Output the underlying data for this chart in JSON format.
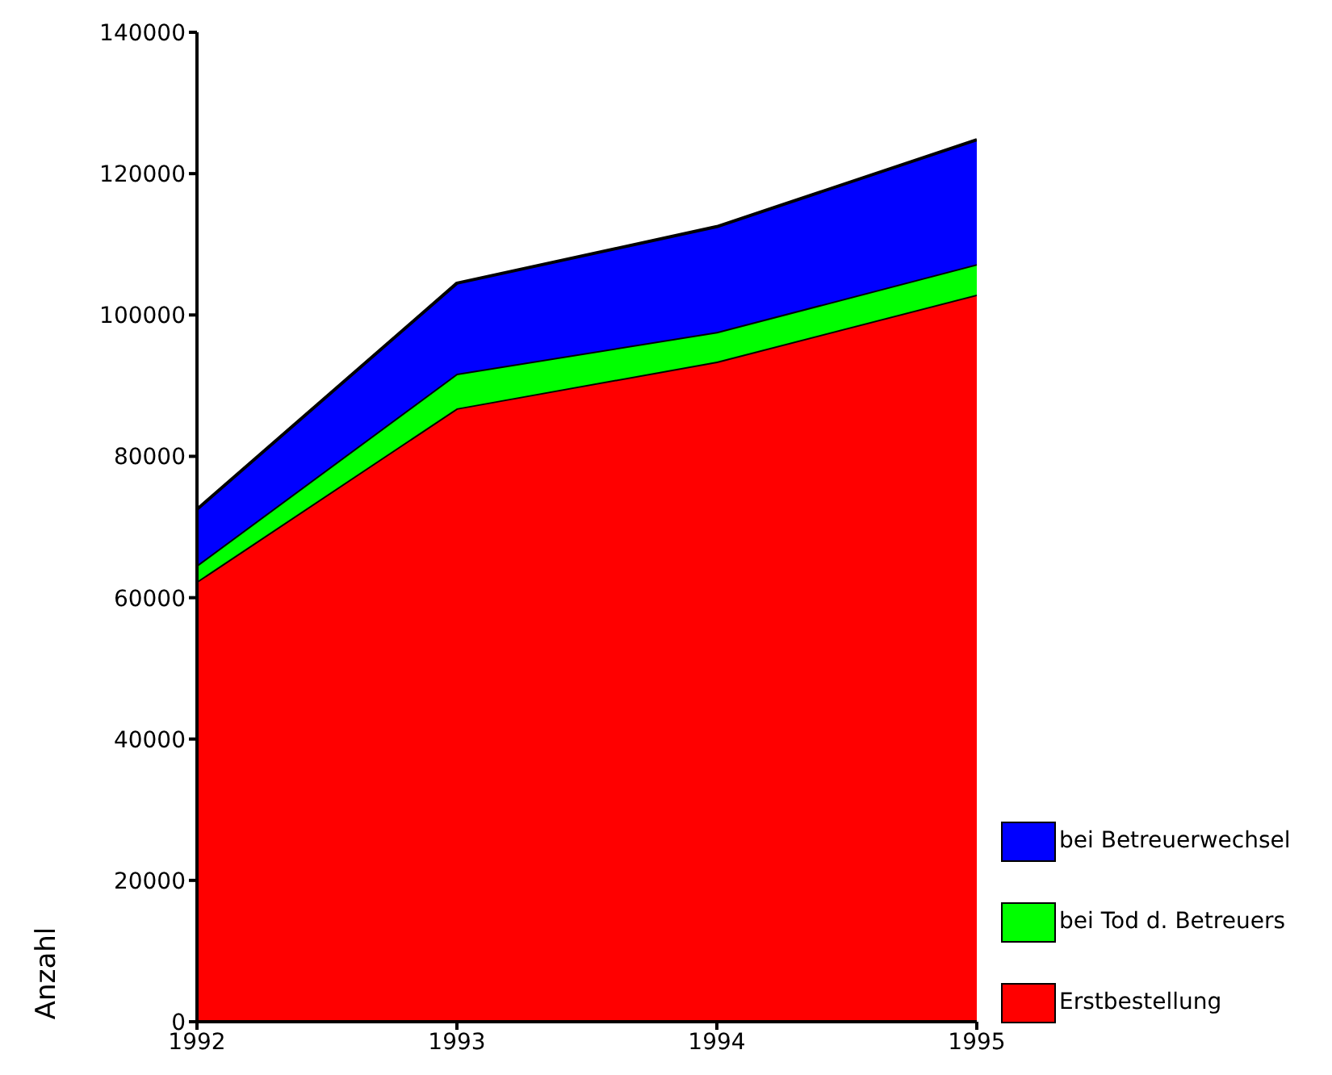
{
  "chart_data": {
    "type": "area",
    "stacked": true,
    "ylabel": "Anzahl",
    "x": [
      1992,
      1993,
      1994,
      1995
    ],
    "xlim": [
      1992,
      1995
    ],
    "xticks": [
      1992,
      1993,
      1994,
      1995
    ],
    "ylim": [
      0,
      140000
    ],
    "yticks": [
      0,
      20000,
      40000,
      60000,
      80000,
      100000,
      120000,
      140000
    ],
    "grid": false,
    "legend": "bottom right",
    "series": [
      {
        "name": "Erstbestellung",
        "color": "#ff0000",
        "values": [
          62300,
          86800,
          93400,
          102900
        ]
      },
      {
        "name": "bei Tod d. Betreuers",
        "color": "#00ff00",
        "values": [
          2300,
          4900,
          4200,
          4300
        ]
      },
      {
        "name": "bei Betreuerwechsel",
        "color": "#0000ff",
        "values": [
          7900,
          12800,
          14900,
          17600
        ]
      }
    ]
  }
}
